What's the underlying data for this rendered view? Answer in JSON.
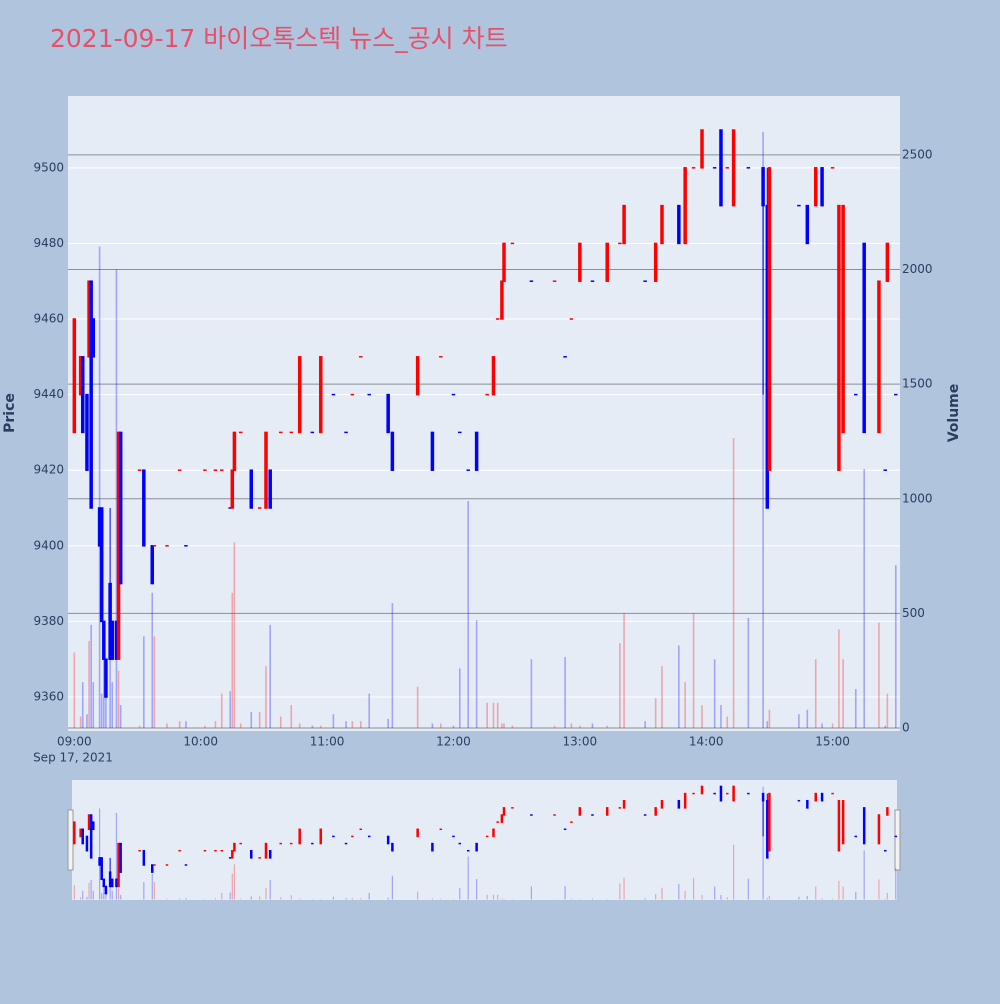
{
  "chart_data": {
    "type": "candlestick",
    "title": "2021-09-17 바이오톡스텍 뉴스_공시 차트",
    "y_label": "Price",
    "y2_label": "Volume",
    "x_date_label": "Sep 17, 2021",
    "increasing_color": "#ff0000",
    "decreasing_color": "#0000ff",
    "xlim": [
      "08:57",
      "15:32"
    ],
    "xticks": [
      "09:00",
      "10:00",
      "11:00",
      "12:00",
      "13:00",
      "14:00",
      "15:00"
    ],
    "ylim": [
      9351,
      9519
    ],
    "yticks": [
      9360,
      9380,
      9400,
      9420,
      9440,
      9460,
      9480,
      9500
    ],
    "y2lim": [
      -13,
      2757
    ],
    "y2ticks": [
      0,
      500,
      1000,
      1500,
      2000,
      2500
    ],
    "grid": true,
    "range_slider": true,
    "x": [
      "09:00",
      "09:03",
      "09:04",
      "09:06",
      "09:07",
      "09:08",
      "09:09",
      "09:12",
      "09:13",
      "09:14",
      "09:15",
      "09:17",
      "09:18",
      "09:20",
      "09:21",
      "09:22",
      "09:31",
      "09:33",
      "09:37",
      "09:38",
      "09:44",
      "09:50",
      "09:53",
      "10:02",
      "10:07",
      "10:10",
      "10:14",
      "10:15",
      "10:16",
      "10:19",
      "10:24",
      "10:28",
      "10:31",
      "10:33",
      "10:38",
      "10:43",
      "10:47",
      "10:53",
      "10:57",
      "11:03",
      "11:09",
      "11:12",
      "11:16",
      "11:20",
      "11:29",
      "11:31",
      "11:43",
      "11:50",
      "11:54",
      "12:00",
      "12:03",
      "12:07",
      "12:11",
      "12:16",
      "12:19",
      "12:21",
      "12:23",
      "12:24",
      "12:28",
      "12:37",
      "12:48",
      "12:53",
      "12:56",
      "13:00",
      "13:06",
      "13:13",
      "13:19",
      "13:21",
      "13:31",
      "13:36",
      "13:39",
      "13:47",
      "13:50",
      "13:54",
      "13:58",
      "14:04",
      "14:07",
      "14:10",
      "14:13",
      "14:20",
      "14:27",
      "14:29",
      "14:30",
      "14:44",
      "14:48",
      "14:52",
      "14:55",
      "15:00",
      "15:03",
      "15:05",
      "15:11",
      "15:15",
      "15:22",
      "15:25",
      "15:26",
      "15:30"
    ],
    "open": [
      9430,
      9440,
      9450,
      9440,
      9450,
      9470,
      9460,
      9410,
      9410,
      9380,
      9370,
      9390,
      9380,
      9380,
      9370,
      9430,
      9420,
      9420,
      9400,
      9400,
      9400,
      9420,
      9400,
      9420,
      9420,
      9420,
      9410,
      9410,
      9420,
      9430,
      9420,
      9410,
      9410,
      9420,
      9430,
      9430,
      9430,
      9430,
      9430,
      9440,
      9430,
      9440,
      9450,
      9440,
      9440,
      9430,
      9440,
      9430,
      9450,
      9440,
      9430,
      9420,
      9430,
      9440,
      9440,
      9460,
      9460,
      9470,
      9480,
      9470,
      9470,
      9450,
      9460,
      9470,
      9470,
      9470,
      9480,
      9480,
      9470,
      9470,
      9480,
      9490,
      9480,
      9500,
      9500,
      9500,
      9510,
      9500,
      9490,
      9500,
      9500,
      9490,
      9420,
      9490,
      9490,
      9490,
      9500,
      9500,
      9420,
      9430,
      9440,
      9480,
      9430,
      9420,
      9470,
      9440
    ],
    "high": [
      9460,
      9450,
      9450,
      9440,
      9470,
      9470,
      9460,
      9410,
      9410,
      9380,
      9370,
      9410,
      9380,
      9380,
      9430,
      9430,
      9420,
      9420,
      9400,
      9400,
      9400,
      9420,
      9400,
      9420,
      9420,
      9420,
      9410,
      9420,
      9430,
      9430,
      9420,
      9410,
      9430,
      9420,
      9430,
      9430,
      9450,
      9430,
      9450,
      9440,
      9430,
      9440,
      9450,
      9440,
      9440,
      9430,
      9450,
      9430,
      9450,
      9440,
      9430,
      9420,
      9430,
      9440,
      9450,
      9460,
      9470,
      9480,
      9480,
      9470,
      9470,
      9450,
      9460,
      9480,
      9470,
      9480,
      9480,
      9490,
      9470,
      9480,
      9490,
      9490,
      9500,
      9500,
      9510,
      9500,
      9510,
      9500,
      9510,
      9500,
      9500,
      9500,
      9500,
      9490,
      9490,
      9500,
      9500,
      9500,
      9490,
      9490,
      9440,
      9480,
      9470,
      9420,
      9480,
      9440
    ],
    "low": [
      9430,
      9440,
      9430,
      9420,
      9450,
      9410,
      9450,
      9400,
      9380,
      9370,
      9360,
      9370,
      9370,
      9370,
      9370,
      9390,
      9420,
      9400,
      9390,
      9400,
      9400,
      9420,
      9400,
      9420,
      9420,
      9420,
      9410,
      9410,
      9420,
      9430,
      9410,
      9410,
      9410,
      9410,
      9430,
      9430,
      9430,
      9430,
      9430,
      9440,
      9430,
      9440,
      9450,
      9440,
      9430,
      9420,
      9440,
      9420,
      9450,
      9440,
      9430,
      9420,
      9420,
      9440,
      9440,
      9460,
      9460,
      9470,
      9480,
      9470,
      9470,
      9450,
      9460,
      9470,
      9470,
      9470,
      9480,
      9480,
      9470,
      9470,
      9480,
      9480,
      9480,
      9500,
      9500,
      9500,
      9490,
      9500,
      9490,
      9500,
      9440,
      9410,
      9420,
      9490,
      9480,
      9490,
      9490,
      9500,
      9420,
      9430,
      9440,
      9430,
      9430,
      9420,
      9470,
      9440
    ],
    "close": [
      9460,
      9450,
      9430,
      9420,
      9470,
      9410,
      9450,
      9400,
      9380,
      9370,
      9360,
      9370,
      9370,
      9370,
      9430,
      9390,
      9420,
      9400,
      9390,
      9400,
      9400,
      9420,
      9400,
      9420,
      9420,
      9420,
      9410,
      9420,
      9430,
      9430,
      9410,
      9410,
      9430,
      9410,
      9430,
      9430,
      9450,
      9430,
      9450,
      9440,
      9430,
      9440,
      9450,
      9440,
      9430,
      9420,
      9450,
      9420,
      9450,
      9440,
      9430,
      9420,
      9420,
      9440,
      9450,
      9460,
      9470,
      9480,
      9480,
      9470,
      9470,
      9450,
      9460,
      9480,
      9470,
      9480,
      9480,
      9490,
      9470,
      9480,
      9490,
      9480,
      9500,
      9500,
      9510,
      9500,
      9490,
      9500,
      9510,
      9500,
      9490,
      9410,
      9500,
      9490,
      9480,
      9500,
      9490,
      9500,
      9490,
      9490,
      9440,
      9430,
      9470,
      9420,
      9480,
      9440
    ],
    "volume": [
      330,
      50,
      200,
      60,
      380,
      450,
      200,
      2100,
      150,
      400,
      150,
      300,
      200,
      2000,
      250,
      100,
      10,
      400,
      590,
      400,
      20,
      30,
      30,
      10,
      30,
      150,
      160,
      590,
      810,
      20,
      70,
      70,
      270,
      450,
      50,
      100,
      20,
      10,
      10,
      60,
      30,
      30,
      30,
      150,
      40,
      545,
      180,
      20,
      20,
      10,
      260,
      990,
      470,
      110,
      110,
      110,
      20,
      20,
      10,
      300,
      10,
      310,
      20,
      10,
      20,
      10,
      370,
      500,
      30,
      130,
      270,
      360,
      200,
      500,
      100,
      300,
      100,
      50,
      1265,
      480,
      2600,
      30,
      80,
      60,
      80,
      300,
      20,
      20,
      430,
      300,
      170,
      1130,
      460,
      10,
      150,
      710
    ]
  }
}
